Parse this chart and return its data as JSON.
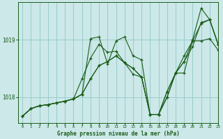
{
  "title": "Graphe pression niveau de la mer (hPa)",
  "bg_color": "#cce8e8",
  "grid_color": "#99cccc",
  "line_color": "#1a5c1a",
  "xlim": [
    -0.5,
    23
  ],
  "ylim": [
    1017.55,
    1019.65
  ],
  "yticks": [
    1018,
    1019
  ],
  "ytick_labels": [
    "1018",
    "1019"
  ],
  "xticks": [
    0,
    1,
    2,
    3,
    4,
    5,
    6,
    7,
    8,
    9,
    10,
    11,
    12,
    13,
    14,
    15,
    16,
    17,
    18,
    19,
    20,
    21,
    22,
    23
  ],
  "series": [
    [
      0,
      1017.67
    ],
    [
      23,
      1018.92
    ],
    [
      23,
      1019.12
    ],
    [
      23,
      1019.35
    ],
    [
      21,
      1019.55
    ]
  ],
  "full_series": [
    [
      1017.67,
      1017.8,
      1017.85,
      1017.87,
      1017.9,
      1017.93,
      1017.97,
      1018.05,
      1019.02,
      1019.05,
      1018.58,
      1018.98,
      1019.05,
      1018.72,
      1018.65,
      1017.7,
      1017.7,
      1018.0,
      1018.42,
      1018.42,
      1019.0,
      1019.55,
      1019.35,
      1018.92
    ],
    [
      1017.67,
      1017.8,
      1017.85,
      1017.87,
      1017.9,
      1017.93,
      1017.97,
      1018.05,
      1018.32,
      1018.55,
      1018.62,
      1018.72,
      1018.6,
      1018.5,
      1018.35,
      1017.7,
      1017.7,
      1018.1,
      1018.42,
      1018.62,
      1018.88,
      1019.3,
      1019.35,
      1018.92
    ],
    [
      1017.67,
      1017.8,
      1017.85,
      1017.87,
      1017.9,
      1017.93,
      1017.97,
      1018.05,
      1018.32,
      1018.55,
      1018.62,
      1018.72,
      1018.6,
      1018.5,
      1018.35,
      1017.7,
      1017.7,
      1018.1,
      1018.42,
      1018.62,
      1018.98,
      1018.98,
      1019.02,
      1018.82
    ],
    [
      1017.67,
      1017.8,
      1017.85,
      1017.87,
      1017.9,
      1017.93,
      1017.97,
      1018.32,
      1018.68,
      1018.92,
      1018.78,
      1018.8,
      1018.6,
      1018.4,
      1018.35,
      1017.7,
      1017.7,
      1018.0,
      1018.42,
      1018.72,
      1018.98,
      1019.28,
      1019.35,
      1018.92
    ]
  ]
}
